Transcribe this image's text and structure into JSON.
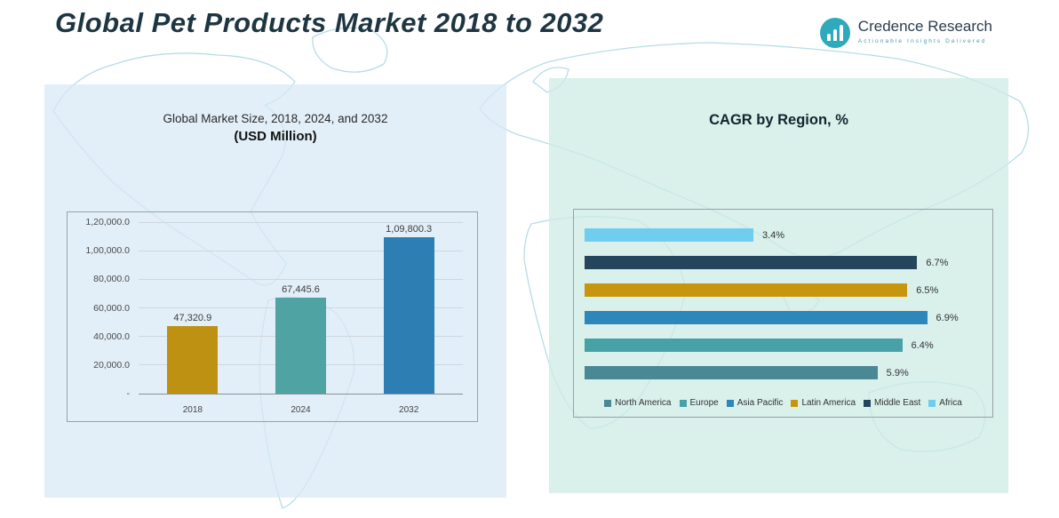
{
  "page": {
    "title": "Global Pet Products Market 2018 to 2032"
  },
  "logo": {
    "name": "Credence Research",
    "tagline": "Actionable Insights Delivered"
  },
  "left_panel": {
    "subtitle_line1": "Global Market Size, 2018, 2024, and 2032",
    "subtitle_line2": "(USD Million)"
  },
  "right_panel": {
    "title": "CAGR by Region, %"
  },
  "chart_data": [
    {
      "type": "bar",
      "orientation": "vertical",
      "title": "Global Market Size, 2018, 2024, and 2032 (USD Million)",
      "categories": [
        "2018",
        "2024",
        "2032"
      ],
      "values": [
        47320.9,
        67445.6,
        109800.3
      ],
      "value_labels": [
        "47,320.9",
        "67,445.6",
        "1,09,800.3"
      ],
      "bar_colors": [
        "#bf9112",
        "#4fa3a3",
        "#2d7fb3"
      ],
      "ylim": [
        0,
        120000
      ],
      "y_ticks": [
        120000,
        100000,
        80000,
        60000,
        40000,
        20000,
        0
      ],
      "y_tick_labels": [
        "1,20,000.0",
        "1,00,000.0",
        "80,000.0",
        "60,000.0",
        "40,000.0",
        "20,000.0",
        "-"
      ],
      "grid": true,
      "legend_position": "none"
    },
    {
      "type": "bar",
      "orientation": "horizontal",
      "title": "CAGR by Region, %",
      "categories": [
        "Africa",
        "Middle East",
        "Latin America",
        "Asia Pacific",
        "Europe",
        "North America"
      ],
      "values": [
        3.4,
        6.7,
        6.5,
        6.9,
        6.4,
        5.9
      ],
      "value_labels": [
        "3.4%",
        "6.7%",
        "6.5%",
        "6.9%",
        "6.4%",
        "5.9%"
      ],
      "bar_colors": [
        "#70cdee",
        "#24455c",
        "#c8960c",
        "#2d87b8",
        "#47a1a7",
        "#4a8896"
      ],
      "xlim": [
        0,
        8
      ],
      "grid": false,
      "legend_position": "bottom",
      "legend": [
        {
          "label": "North America",
          "color": "#4a8896"
        },
        {
          "label": "Europe",
          "color": "#47a1a7"
        },
        {
          "label": "Asia Pacific",
          "color": "#2d87b8"
        },
        {
          "label": "Latin America",
          "color": "#c8960c"
        },
        {
          "label": "Middle East",
          "color": "#24455c"
        },
        {
          "label": "Africa",
          "color": "#70cdee"
        }
      ]
    }
  ],
  "colors": {
    "title_text": "#1e3642",
    "left_panel_bg": "#d8e9f5",
    "right_panel_bg": "#ceece6",
    "map_stroke": "#b7dce6",
    "logo_teal": "#2fa9bc"
  }
}
